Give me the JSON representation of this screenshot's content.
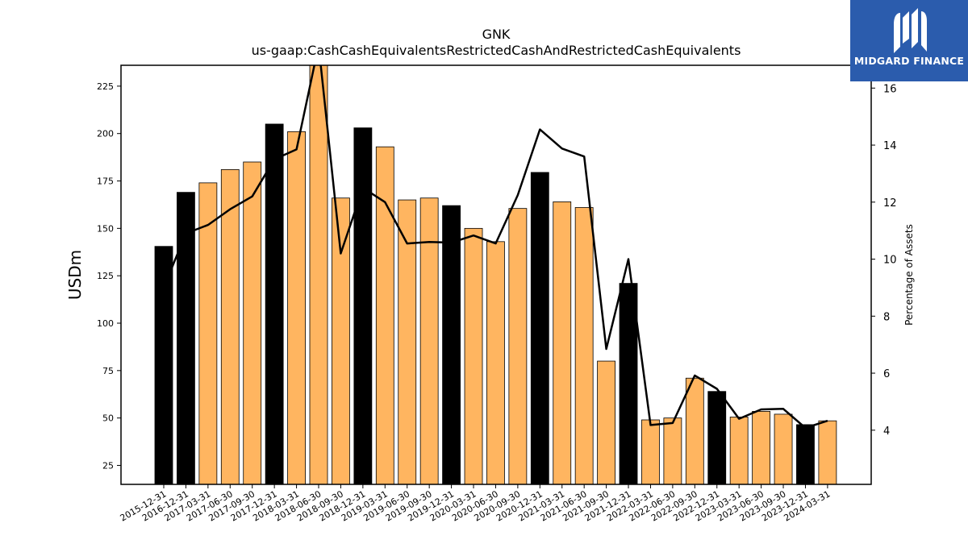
{
  "chart_data": {
    "type": "bar+line",
    "title": "GNK",
    "subtitle": "us-gaap:CashCashEquivalentsRestrictedCashAndRestrictedCashEquivalents",
    "ylabel_left": "USDm",
    "ylabel_right": "Percentage of Assets",
    "ylim_left": [
      15,
      236
    ],
    "ylim_right": [
      2.1,
      16.8
    ],
    "yticks_left": [
      25,
      50,
      75,
      100,
      125,
      150,
      175,
      200,
      225
    ],
    "yticks_right": [
      4,
      6,
      8,
      10,
      12,
      14,
      16
    ],
    "categories": [
      "2015-12-31",
      "2016-12-31",
      "2017-03-31",
      "2017-06-30",
      "2017-09-30",
      "2017-12-31",
      "2018-03-31",
      "2018-06-30",
      "2018-09-30",
      "2018-12-31",
      "2019-03-31",
      "2019-06-30",
      "2019-09-30",
      "2019-12-31",
      "2020-03-31",
      "2020-06-30",
      "2020-09-30",
      "2020-12-31",
      "2021-03-31",
      "2021-06-30",
      "2021-09-30",
      "2021-12-31",
      "2022-03-31",
      "2022-06-30",
      "2022-09-30",
      "2022-12-31",
      "2023-03-31",
      "2023-06-30",
      "2023-09-30",
      "2023-12-31",
      "2024-03-31"
    ],
    "bar_values": [
      140.5,
      169,
      174,
      181,
      185,
      205,
      201,
      240,
      166,
      203,
      193,
      165,
      166,
      162,
      150,
      143,
      160.5,
      179.5,
      164,
      161,
      80,
      121,
      49,
      50,
      71,
      64,
      50.5,
      53.5,
      52,
      46.5,
      48.5
    ],
    "bar_is_year_end": [
      true,
      true,
      false,
      false,
      false,
      true,
      false,
      false,
      false,
      true,
      false,
      false,
      false,
      true,
      false,
      false,
      false,
      true,
      false,
      false,
      false,
      true,
      false,
      false,
      false,
      true,
      false,
      false,
      false,
      true,
      false
    ],
    "line_values": [
      9.0,
      10.9,
      11.2,
      11.75,
      12.2,
      13.5,
      13.85,
      17.5,
      10.2,
      12.5,
      12.0,
      10.55,
      10.6,
      10.58,
      10.83,
      10.55,
      12.25,
      14.55,
      13.88,
      13.6,
      6.85,
      10.0,
      4.18,
      4.25,
      5.92,
      5.45,
      4.4,
      4.73,
      4.75,
      4.08,
      4.33
    ],
    "colors": {
      "bar_year_end": "#000000",
      "bar_quarter": "#ffb560",
      "line": "#000000"
    },
    "grid": false
  },
  "logo": {
    "text": "MIDGARD FINANCE",
    "background": "#2b5cad"
  }
}
